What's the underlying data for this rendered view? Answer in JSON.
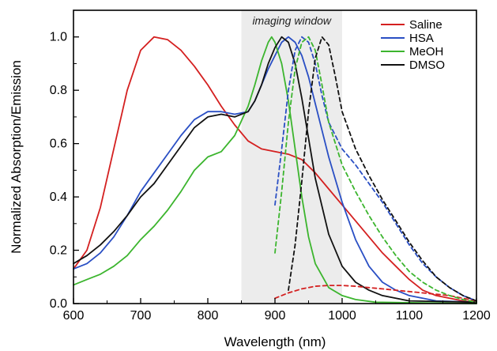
{
  "chart_data": {
    "type": "line",
    "title": "",
    "xlabel": "Wavelength (nm)",
    "ylabel": "Normalized Absorption/Emission",
    "xlim": [
      600,
      1200
    ],
    "ylim": [
      0,
      1.1
    ],
    "xticks": [
      600,
      700,
      800,
      900,
      1000,
      1100,
      1200
    ],
    "yticks": [
      0.0,
      0.2,
      0.4,
      0.6,
      0.8,
      1.0
    ],
    "xtick_labels": [
      "600",
      "700",
      "800",
      "900",
      "1000",
      "1100",
      "1200"
    ],
    "ytick_labels": [
      "0.0",
      "0.2",
      "0.4",
      "0.6",
      "0.8",
      "1.0"
    ],
    "grid": false,
    "legend_position": "top-right",
    "annotations": [
      {
        "text": "imaging window",
        "region_x": [
          850,
          1000
        ],
        "shaded": true,
        "color": "#ececec"
      }
    ],
    "series": [
      {
        "name": "Saline",
        "color": "#d42020",
        "kind": "absorption",
        "line_style": "solid",
        "points": [
          [
            600,
            0.13
          ],
          [
            620,
            0.2
          ],
          [
            640,
            0.36
          ],
          [
            660,
            0.58
          ],
          [
            680,
            0.8
          ],
          [
            700,
            0.95
          ],
          [
            720,
            1.0
          ],
          [
            740,
            0.99
          ],
          [
            760,
            0.95
          ],
          [
            780,
            0.89
          ],
          [
            800,
            0.82
          ],
          [
            820,
            0.74
          ],
          [
            840,
            0.67
          ],
          [
            860,
            0.61
          ],
          [
            880,
            0.58
          ],
          [
            900,
            0.57
          ],
          [
            920,
            0.56
          ],
          [
            940,
            0.54
          ],
          [
            960,
            0.49
          ],
          [
            980,
            0.43
          ],
          [
            1000,
            0.37
          ],
          [
            1020,
            0.31
          ],
          [
            1040,
            0.25
          ],
          [
            1060,
            0.19
          ],
          [
            1080,
            0.14
          ],
          [
            1100,
            0.09
          ],
          [
            1120,
            0.05
          ],
          [
            1140,
            0.03
          ],
          [
            1160,
            0.02
          ],
          [
            1180,
            0.01
          ],
          [
            1200,
            0.005
          ]
        ]
      },
      {
        "name": "HSA",
        "color": "#2a4fc4",
        "kind": "absorption",
        "line_style": "solid",
        "points": [
          [
            600,
            0.13
          ],
          [
            620,
            0.15
          ],
          [
            640,
            0.19
          ],
          [
            660,
            0.25
          ],
          [
            680,
            0.33
          ],
          [
            700,
            0.42
          ],
          [
            720,
            0.49
          ],
          [
            740,
            0.56
          ],
          [
            760,
            0.63
          ],
          [
            780,
            0.69
          ],
          [
            800,
            0.72
          ],
          [
            820,
            0.72
          ],
          [
            840,
            0.71
          ],
          [
            860,
            0.72
          ],
          [
            870,
            0.76
          ],
          [
            880,
            0.82
          ],
          [
            890,
            0.88
          ],
          [
            900,
            0.93
          ],
          [
            910,
            0.98
          ],
          [
            920,
            1.0
          ],
          [
            930,
            0.98
          ],
          [
            940,
            0.93
          ],
          [
            950,
            0.85
          ],
          [
            960,
            0.75
          ],
          [
            970,
            0.65
          ],
          [
            980,
            0.55
          ],
          [
            1000,
            0.38
          ],
          [
            1020,
            0.24
          ],
          [
            1040,
            0.14
          ],
          [
            1060,
            0.08
          ],
          [
            1080,
            0.05
          ],
          [
            1100,
            0.03
          ],
          [
            1120,
            0.02
          ],
          [
            1140,
            0.01
          ],
          [
            1200,
            0.005
          ]
        ]
      },
      {
        "name": "MeOH",
        "color": "#3cb52e",
        "kind": "absorption",
        "line_style": "solid",
        "points": [
          [
            600,
            0.07
          ],
          [
            620,
            0.09
          ],
          [
            640,
            0.11
          ],
          [
            660,
            0.14
          ],
          [
            680,
            0.18
          ],
          [
            700,
            0.24
          ],
          [
            720,
            0.29
          ],
          [
            740,
            0.35
          ],
          [
            760,
            0.42
          ],
          [
            780,
            0.5
          ],
          [
            800,
            0.55
          ],
          [
            820,
            0.57
          ],
          [
            840,
            0.63
          ],
          [
            860,
            0.74
          ],
          [
            870,
            0.82
          ],
          [
            880,
            0.91
          ],
          [
            890,
            0.98
          ],
          [
            895,
            1.0
          ],
          [
            900,
            0.98
          ],
          [
            910,
            0.9
          ],
          [
            920,
            0.76
          ],
          [
            930,
            0.58
          ],
          [
            940,
            0.4
          ],
          [
            950,
            0.25
          ],
          [
            960,
            0.15
          ],
          [
            980,
            0.06
          ],
          [
            1000,
            0.03
          ],
          [
            1020,
            0.015
          ],
          [
            1050,
            0.005
          ],
          [
            1200,
            0.0
          ]
        ]
      },
      {
        "name": "DMSO",
        "color": "#111111",
        "kind": "absorption",
        "line_style": "solid",
        "points": [
          [
            600,
            0.15
          ],
          [
            620,
            0.18
          ],
          [
            640,
            0.22
          ],
          [
            660,
            0.27
          ],
          [
            680,
            0.33
          ],
          [
            700,
            0.4
          ],
          [
            720,
            0.45
          ],
          [
            740,
            0.52
          ],
          [
            760,
            0.59
          ],
          [
            780,
            0.66
          ],
          [
            800,
            0.7
          ],
          [
            820,
            0.71
          ],
          [
            840,
            0.7
          ],
          [
            860,
            0.72
          ],
          [
            870,
            0.76
          ],
          [
            880,
            0.82
          ],
          [
            890,
            0.9
          ],
          [
            900,
            0.96
          ],
          [
            910,
            1.0
          ],
          [
            920,
            0.98
          ],
          [
            930,
            0.9
          ],
          [
            940,
            0.77
          ],
          [
            950,
            0.62
          ],
          [
            960,
            0.47
          ],
          [
            980,
            0.26
          ],
          [
            1000,
            0.14
          ],
          [
            1020,
            0.08
          ],
          [
            1040,
            0.05
          ],
          [
            1060,
            0.03
          ],
          [
            1080,
            0.02
          ],
          [
            1100,
            0.01
          ],
          [
            1200,
            0.005
          ]
        ]
      },
      {
        "name": "Saline",
        "color": "#d42020",
        "kind": "emission",
        "line_style": "dashed",
        "points": [
          [
            900,
            0.02
          ],
          [
            920,
            0.04
          ],
          [
            940,
            0.055
          ],
          [
            960,
            0.065
          ],
          [
            980,
            0.068
          ],
          [
            1000,
            0.068
          ],
          [
            1020,
            0.065
          ],
          [
            1040,
            0.06
          ],
          [
            1060,
            0.055
          ],
          [
            1080,
            0.05
          ],
          [
            1100,
            0.045
          ],
          [
            1120,
            0.04
          ],
          [
            1140,
            0.035
          ],
          [
            1160,
            0.03
          ],
          [
            1180,
            0.02
          ],
          [
            1200,
            0.01
          ]
        ]
      },
      {
        "name": "HSA",
        "color": "#2a4fc4",
        "kind": "emission",
        "line_style": "dashed",
        "points": [
          [
            900,
            0.37
          ],
          [
            910,
            0.58
          ],
          [
            920,
            0.8
          ],
          [
            930,
            0.95
          ],
          [
            940,
            1.0
          ],
          [
            950,
            0.98
          ],
          [
            960,
            0.9
          ],
          [
            970,
            0.78
          ],
          [
            980,
            0.68
          ],
          [
            1000,
            0.58
          ],
          [
            1020,
            0.52
          ],
          [
            1040,
            0.45
          ],
          [
            1060,
            0.38
          ],
          [
            1080,
            0.3
          ],
          [
            1100,
            0.22
          ],
          [
            1120,
            0.15
          ],
          [
            1140,
            0.1
          ],
          [
            1160,
            0.06
          ],
          [
            1180,
            0.03
          ],
          [
            1200,
            0.01
          ]
        ]
      },
      {
        "name": "MeOH",
        "color": "#3cb52e",
        "kind": "emission",
        "line_style": "dashed",
        "points": [
          [
            900,
            0.19
          ],
          [
            910,
            0.42
          ],
          [
            920,
            0.68
          ],
          [
            930,
            0.88
          ],
          [
            940,
            0.98
          ],
          [
            950,
            1.0
          ],
          [
            960,
            0.95
          ],
          [
            970,
            0.82
          ],
          [
            980,
            0.68
          ],
          [
            1000,
            0.52
          ],
          [
            1020,
            0.42
          ],
          [
            1040,
            0.33
          ],
          [
            1060,
            0.25
          ],
          [
            1080,
            0.18
          ],
          [
            1100,
            0.12
          ],
          [
            1120,
            0.08
          ],
          [
            1140,
            0.05
          ],
          [
            1160,
            0.03
          ],
          [
            1180,
            0.015
          ],
          [
            1200,
            0.005
          ]
        ]
      },
      {
        "name": "DMSO",
        "color": "#111111",
        "kind": "emission",
        "line_style": "dashed",
        "points": [
          [
            920,
            0.05
          ],
          [
            930,
            0.22
          ],
          [
            940,
            0.46
          ],
          [
            950,
            0.72
          ],
          [
            960,
            0.92
          ],
          [
            970,
            1.0
          ],
          [
            980,
            0.97
          ],
          [
            990,
            0.85
          ],
          [
            1000,
            0.72
          ],
          [
            1020,
            0.58
          ],
          [
            1040,
            0.48
          ],
          [
            1060,
            0.39
          ],
          [
            1080,
            0.31
          ],
          [
            1100,
            0.23
          ],
          [
            1120,
            0.16
          ],
          [
            1140,
            0.1
          ],
          [
            1160,
            0.06
          ],
          [
            1180,
            0.03
          ],
          [
            1200,
            0.01
          ]
        ]
      }
    ],
    "legend": [
      {
        "name": "Saline",
        "color": "#d42020"
      },
      {
        "name": "HSA",
        "color": "#2a4fc4"
      },
      {
        "name": "MeOH",
        "color": "#3cb52e"
      },
      {
        "name": "DMSO",
        "color": "#111111"
      }
    ]
  }
}
